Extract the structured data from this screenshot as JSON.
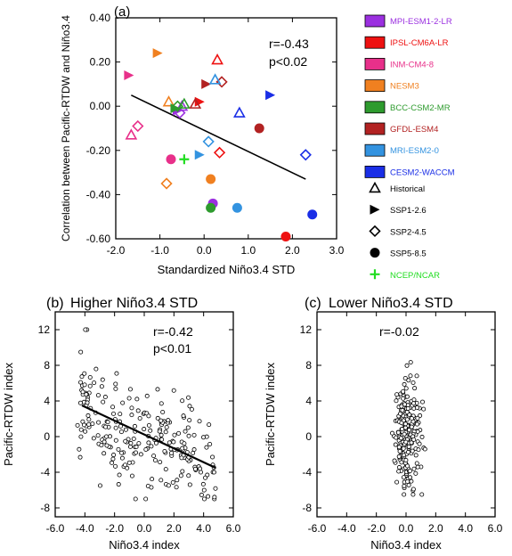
{
  "chart_data": [
    {
      "panel": "(a)",
      "type": "scatter",
      "title": "",
      "xlabel": "Standardized Niño3.4 STD",
      "ylabel": "Correlation between Pacific-RTDW and Niño3.4",
      "xlim": [
        -2.0,
        3.0
      ],
      "ylim": [
        -0.6,
        0.4
      ],
      "xticks": [
        "-2.0",
        "-1.0",
        "0.0",
        "1.0",
        "2.0",
        "3.0"
      ],
      "yticks": [
        "-0.60",
        "-0.40",
        "-0.20",
        "0.00",
        "0.20",
        "0.40"
      ],
      "annotation": [
        "r=-0.43",
        "p<0.02"
      ],
      "grid": false,
      "legend_position": "right",
      "fit_line": [
        [
          -1.65,
          0.05
        ],
        [
          2.3,
          -0.33
        ]
      ],
      "models": [
        {
          "name": "MPI-ESM1-2-LR",
          "color": "#9b30e0"
        },
        {
          "name": "IPSL-CM6A-LR",
          "color": "#ee1111"
        },
        {
          "name": "INM-CM4-8",
          "color": "#e8308a"
        },
        {
          "name": "NESM3",
          "color": "#f08020"
        },
        {
          "name": "BCC-CSM2-MR",
          "color": "#2e9b2e"
        },
        {
          "name": "GFDL-ESM4",
          "color": "#b22222"
        },
        {
          "name": "MRI-ESM2-0",
          "color": "#3393e0"
        },
        {
          "name": "CESM2-WACCM",
          "color": "#1a2ee6"
        }
      ],
      "scenarios": [
        {
          "name": "Historical",
          "marker": "triangle"
        },
        {
          "name": "SSP1-2.6",
          "marker": "right-triangle"
        },
        {
          "name": "SSP2-4.5",
          "marker": "diamond"
        },
        {
          "name": "SSP5-8.5",
          "marker": "circle"
        },
        {
          "name": "NCEP/NCAR",
          "marker": "plus"
        }
      ],
      "points": [
        {
          "model": "MPI-ESM1-2-LR",
          "scenario": "Historical",
          "x": -0.5,
          "y": 0.0
        },
        {
          "model": "MPI-ESM1-2-LR",
          "scenario": "SSP1-2.6",
          "x": -0.6,
          "y": -0.02
        },
        {
          "model": "MPI-ESM1-2-LR",
          "scenario": "SSP2-4.5",
          "x": -0.55,
          "y": -0.03
        },
        {
          "model": "MPI-ESM1-2-LR",
          "scenario": "SSP5-8.5",
          "x": 0.2,
          "y": -0.44
        },
        {
          "model": "IPSL-CM6A-LR",
          "scenario": "Historical",
          "x": 0.3,
          "y": 0.21
        },
        {
          "model": "IPSL-CM6A-LR",
          "scenario": "SSP1-2.6",
          "x": -0.1,
          "y": 0.02
        },
        {
          "model": "IPSL-CM6A-LR",
          "scenario": "SSP2-4.5",
          "x": 0.35,
          "y": -0.21
        },
        {
          "model": "IPSL-CM6A-LR",
          "scenario": "SSP5-8.5",
          "x": 1.85,
          "y": -0.59
        },
        {
          "model": "INM-CM4-8",
          "scenario": "Historical",
          "x": -1.65,
          "y": -0.13
        },
        {
          "model": "INM-CM4-8",
          "scenario": "SSP1-2.6",
          "x": -1.7,
          "y": 0.14
        },
        {
          "model": "INM-CM4-8",
          "scenario": "SSP2-4.5",
          "x": -1.5,
          "y": -0.09
        },
        {
          "model": "INM-CM4-8",
          "scenario": "SSP5-8.5",
          "x": -0.75,
          "y": -0.24
        },
        {
          "model": "NESM3",
          "scenario": "Historical",
          "x": -0.8,
          "y": 0.02
        },
        {
          "model": "NESM3",
          "scenario": "SSP1-2.6",
          "x": -1.05,
          "y": 0.24
        },
        {
          "model": "NESM3",
          "scenario": "SSP2-4.5",
          "x": -0.85,
          "y": -0.35
        },
        {
          "model": "NESM3",
          "scenario": "SSP5-8.5",
          "x": 0.15,
          "y": -0.33
        },
        {
          "model": "BCC-CSM2-MR",
          "scenario": "Historical",
          "x": -0.45,
          "y": 0.01
        },
        {
          "model": "BCC-CSM2-MR",
          "scenario": "SSP1-2.6",
          "x": -0.65,
          "y": -0.01
        },
        {
          "model": "BCC-CSM2-MR",
          "scenario": "SSP2-4.5",
          "x": -0.6,
          "y": 0.0
        },
        {
          "model": "BCC-CSM2-MR",
          "scenario": "SSP5-8.5",
          "x": 0.15,
          "y": -0.46
        },
        {
          "model": "GFDL-ESM4",
          "scenario": "Historical",
          "x": -0.2,
          "y": 0.01
        },
        {
          "model": "GFDL-ESM4",
          "scenario": "SSP1-2.6",
          "x": 0.05,
          "y": 0.1
        },
        {
          "model": "GFDL-ESM4",
          "scenario": "SSP2-4.5",
          "x": 0.4,
          "y": 0.11
        },
        {
          "model": "GFDL-ESM4",
          "scenario": "SSP5-8.5",
          "x": 1.25,
          "y": -0.1
        },
        {
          "model": "MRI-ESM2-0",
          "scenario": "Historical",
          "x": 0.25,
          "y": 0.12
        },
        {
          "model": "MRI-ESM2-0",
          "scenario": "SSP1-2.6",
          "x": -0.1,
          "y": -0.22
        },
        {
          "model": "MRI-ESM2-0",
          "scenario": "SSP2-4.5",
          "x": 0.1,
          "y": -0.16
        },
        {
          "model": "MRI-ESM2-0",
          "scenario": "SSP5-8.5",
          "x": 0.75,
          "y": -0.46
        },
        {
          "model": "CESM2-WACCM",
          "scenario": "Historical",
          "x": 0.8,
          "y": -0.03
        },
        {
          "model": "CESM2-WACCM",
          "scenario": "SSP1-2.6",
          "x": 1.5,
          "y": 0.05
        },
        {
          "model": "CESM2-WACCM",
          "scenario": "SSP2-4.5",
          "x": 2.3,
          "y": -0.22
        },
        {
          "model": "CESM2-WACCM",
          "scenario": "SSP5-8.5",
          "x": 2.45,
          "y": -0.49
        },
        {
          "model": "NCEP/NCAR",
          "scenario": "NCEP/NCAR",
          "x": -0.45,
          "y": -0.24
        }
      ]
    },
    {
      "panel": "(b)",
      "type": "scatter",
      "title": "Higher Niño3.4 STD",
      "xlabel": "Niño3.4 index",
      "ylabel": "Pacific-RTDW index",
      "xlim": [
        -6.0,
        6.0
      ],
      "ylim": [
        -9,
        14
      ],
      "xticks": [
        "-6.0",
        "-4.0",
        "-2.0",
        "0.0",
        "2.0",
        "4.0",
        "6.0"
      ],
      "yticks": [
        "-8",
        "-4",
        "0",
        "4",
        "8",
        "12"
      ],
      "annotation": [
        "r=-0.42",
        "p<0.01"
      ],
      "fit_line": [
        [
          -4.2,
          3.5
        ],
        [
          4.8,
          -3.5
        ]
      ],
      "n_points": 240,
      "x_spread": [
        -4.5,
        4.8
      ],
      "slope": -0.78,
      "residual_sd": 3.1
    },
    {
      "panel": "(c)",
      "type": "scatter",
      "title": "Lower Niño3.4 STD",
      "xlabel": "Niño3.4 index",
      "ylabel": "Pacific-RTDW index",
      "xlim": [
        -6.0,
        6.0
      ],
      "ylim": [
        -9,
        14
      ],
      "xticks": [
        "-6.0",
        "-4.0",
        "-2.0",
        "0.0",
        "2.0",
        "4.0",
        "6.0"
      ],
      "yticks": [
        "-8",
        "-4",
        "0",
        "4",
        "8",
        "12"
      ],
      "annotation": [
        "r=-0.02"
      ],
      "n_points": 220,
      "x_spread": [
        -1.3,
        1.3
      ],
      "y_spread": [
        -6.5,
        8.6
      ]
    }
  ]
}
